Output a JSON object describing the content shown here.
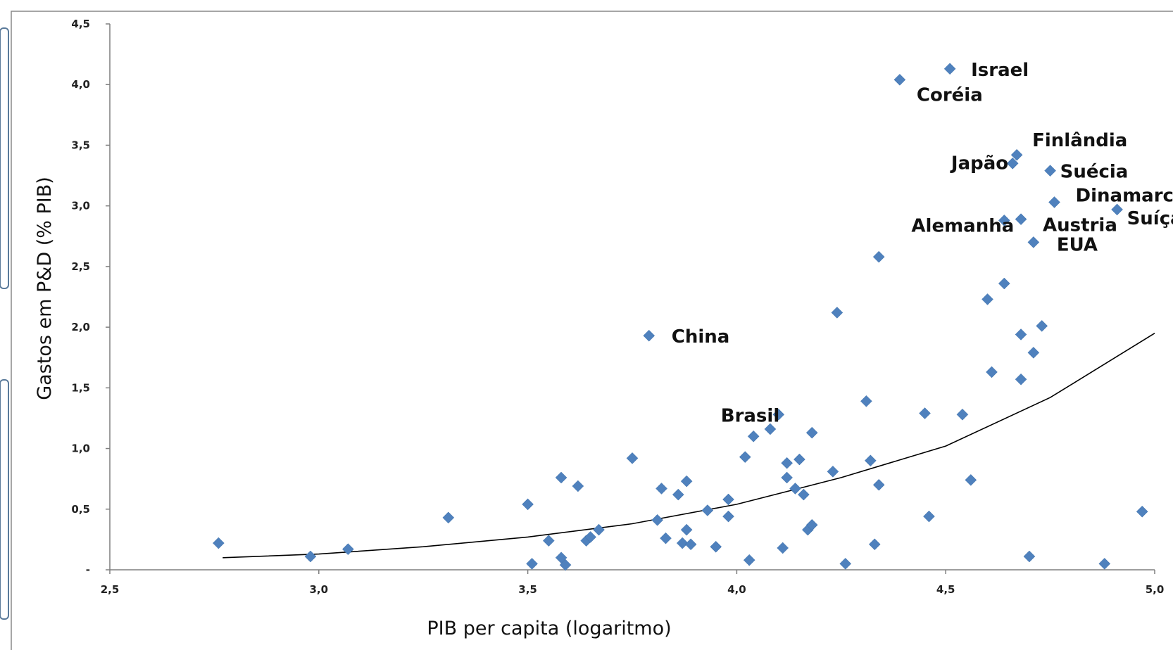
{
  "chart_data": {
    "type": "scatter",
    "title": "",
    "xlabel": "PIB per capita (logaritmo)",
    "ylabel": "Gastos em P&D  (% PIB)",
    "xlim": [
      2.5,
      5.0
    ],
    "ylim": [
      0,
      4.5
    ],
    "x_ticks": [
      "2,5",
      "3,0",
      "3,5",
      "4,0",
      "4,5",
      "5,0"
    ],
    "y_ticks": [
      "-",
      "0,5",
      "1,0",
      "1,5",
      "2,0",
      "2,5",
      "3,0",
      "3,5",
      "4,0",
      "4,5"
    ],
    "grid": false,
    "marker_color": "#4F81BD",
    "trend_color": "#000000",
    "points": [
      {
        "x": 2.76,
        "y": 0.22
      },
      {
        "x": 2.98,
        "y": 0.11
      },
      {
        "x": 3.07,
        "y": 0.17
      },
      {
        "x": 3.31,
        "y": 0.43
      },
      {
        "x": 3.5,
        "y": 0.54
      },
      {
        "x": 3.51,
        "y": 0.05
      },
      {
        "x": 3.55,
        "y": 0.24
      },
      {
        "x": 3.58,
        "y": 0.76
      },
      {
        "x": 3.58,
        "y": 0.1
      },
      {
        "x": 3.59,
        "y": 0.04
      },
      {
        "x": 3.62,
        "y": 0.69
      },
      {
        "x": 3.64,
        "y": 0.24
      },
      {
        "x": 3.65,
        "y": 0.27
      },
      {
        "x": 3.67,
        "y": 0.33
      },
      {
        "x": 3.75,
        "y": 0.92
      },
      {
        "x": 3.79,
        "y": 1.93,
        "label": "China"
      },
      {
        "x": 3.81,
        "y": 0.41
      },
      {
        "x": 3.82,
        "y": 0.67
      },
      {
        "x": 3.83,
        "y": 0.26
      },
      {
        "x": 3.86,
        "y": 0.62
      },
      {
        "x": 3.87,
        "y": 0.22
      },
      {
        "x": 3.88,
        "y": 0.73
      },
      {
        "x": 3.88,
        "y": 0.33
      },
      {
        "x": 3.89,
        "y": 0.21
      },
      {
        "x": 3.93,
        "y": 0.49
      },
      {
        "x": 3.95,
        "y": 0.19
      },
      {
        "x": 3.98,
        "y": 0.58
      },
      {
        "x": 3.98,
        "y": 0.44
      },
      {
        "x": 4.02,
        "y": 0.93
      },
      {
        "x": 4.03,
        "y": 0.08
      },
      {
        "x": 4.04,
        "y": 1.1
      },
      {
        "x": 4.08,
        "y": 1.16
      },
      {
        "x": 4.1,
        "y": 1.28,
        "label": "Brasil"
      },
      {
        "x": 4.11,
        "y": 0.18
      },
      {
        "x": 4.12,
        "y": 0.88
      },
      {
        "x": 4.12,
        "y": 0.76
      },
      {
        "x": 4.14,
        "y": 0.67
      },
      {
        "x": 4.15,
        "y": 0.91
      },
      {
        "x": 4.16,
        "y": 0.62
      },
      {
        "x": 4.18,
        "y": 1.13
      },
      {
        "x": 4.17,
        "y": 0.33
      },
      {
        "x": 4.18,
        "y": 0.37
      },
      {
        "x": 4.23,
        "y": 0.81
      },
      {
        "x": 4.24,
        "y": 2.12
      },
      {
        "x": 4.26,
        "y": 0.05
      },
      {
        "x": 4.31,
        "y": 1.39
      },
      {
        "x": 4.32,
        "y": 0.9
      },
      {
        "x": 4.33,
        "y": 0.21
      },
      {
        "x": 4.34,
        "y": 0.7
      },
      {
        "x": 4.34,
        "y": 2.58
      },
      {
        "x": 4.39,
        "y": 4.04,
        "label": "Coréia"
      },
      {
        "x": 4.45,
        "y": 1.29
      },
      {
        "x": 4.46,
        "y": 0.44
      },
      {
        "x": 4.51,
        "y": 4.13,
        "label": "Israel"
      },
      {
        "x": 4.54,
        "y": 1.28
      },
      {
        "x": 4.56,
        "y": 0.74
      },
      {
        "x": 4.6,
        "y": 2.23
      },
      {
        "x": 4.61,
        "y": 1.63
      },
      {
        "x": 4.64,
        "y": 2.36
      },
      {
        "x": 4.64,
        "y": 2.88,
        "label": "Alemanha"
      },
      {
        "x": 4.66,
        "y": 3.35,
        "label": "Japão"
      },
      {
        "x": 4.67,
        "y": 3.42,
        "label": "Finlândia"
      },
      {
        "x": 4.68,
        "y": 2.89,
        "label": "Austria"
      },
      {
        "x": 4.68,
        "y": 1.94
      },
      {
        "x": 4.68,
        "y": 1.57
      },
      {
        "x": 4.7,
        "y": 0.11
      },
      {
        "x": 4.71,
        "y": 2.7,
        "label": "EUA"
      },
      {
        "x": 4.71,
        "y": 1.79
      },
      {
        "x": 4.73,
        "y": 2.01
      },
      {
        "x": 4.75,
        "y": 3.29,
        "label": "Suécia"
      },
      {
        "x": 4.76,
        "y": 3.03,
        "label": "Dinamarca"
      },
      {
        "x": 4.88,
        "y": 0.05
      },
      {
        "x": 4.91,
        "y": 2.97,
        "label": "Suíça"
      },
      {
        "x": 4.97,
        "y": 0.48
      }
    ],
    "trend_line": [
      {
        "x": 2.77,
        "y": 0.1
      },
      {
        "x": 3.0,
        "y": 0.13
      },
      {
        "x": 3.25,
        "y": 0.19
      },
      {
        "x": 3.5,
        "y": 0.27
      },
      {
        "x": 3.75,
        "y": 0.38
      },
      {
        "x": 4.0,
        "y": 0.54
      },
      {
        "x": 4.25,
        "y": 0.76
      },
      {
        "x": 4.5,
        "y": 1.02
      },
      {
        "x": 4.75,
        "y": 1.42
      },
      {
        "x": 5.0,
        "y": 1.95
      }
    ]
  }
}
